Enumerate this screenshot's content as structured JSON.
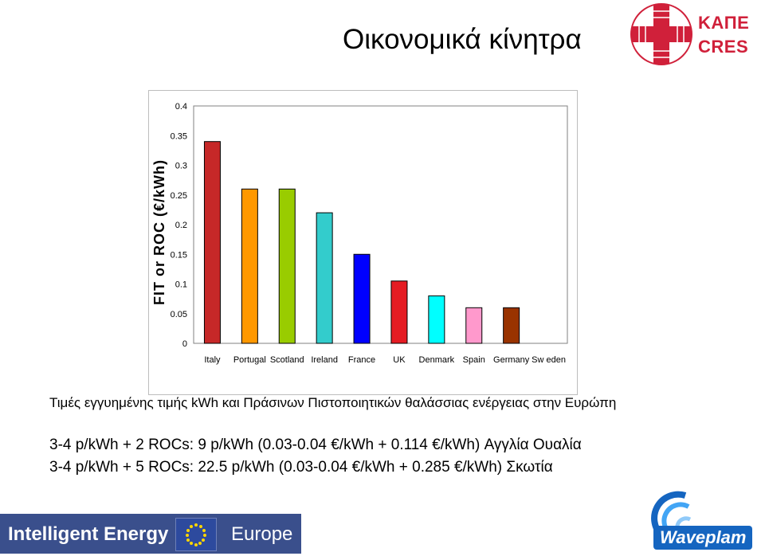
{
  "slide": {
    "title": "Οικονομικά κίνητρα",
    "caption": "Τιμές εγγυημένης τιμής kWh και Πράσινων Πιστοποιητικών θαλάσσιας ενέργειας στην Ευρώπη",
    "line1": "3-4 p/kWh + 2 ROCs: 9 p/kWh (0.03-0.04 €/kWh + 0.114 €/kWh) Αγγλία Ουαλία",
    "line2": "3-4 p/kWh + 5 ROCs: 22.5 p/kWh (0.03-0.04 €/kWh + 0.285 €/kWh) Σκωτία"
  },
  "logos": {
    "kape_line1": "ΚΑΠΕ",
    "kape_line2": "CRES",
    "ie_text": "Intelligent Energy",
    "ie_europe": "Europe",
    "waveplam": "Waveplam"
  },
  "chart_data": {
    "type": "bar",
    "ylabel": "FIT or ROC (€/kWh)",
    "xlabel": "",
    "categories": [
      "Italy",
      "Portugal",
      "Scotland",
      "Ireland",
      "France",
      "UK",
      "Denmark",
      "Spain",
      "Germany",
      "Sw eden"
    ],
    "values": [
      0.34,
      0.26,
      0.26,
      0.22,
      0.15,
      0.105,
      0.08,
      0.06,
      0.06,
      0
    ],
    "colors": [
      "#c62828",
      "#ff9800",
      "#99cc00",
      "#33cccc",
      "#0000ff",
      "#e51c23",
      "#00ffff",
      "#ff99cc",
      "#993300",
      "#808080"
    ],
    "yticks": [
      "0",
      "0.05",
      "0.1",
      "0.15",
      "0.2",
      "0.25",
      "0.3",
      "0.35",
      "0.4"
    ],
    "ylim": [
      0,
      0.4
    ],
    "grid": false,
    "legend": "none"
  }
}
